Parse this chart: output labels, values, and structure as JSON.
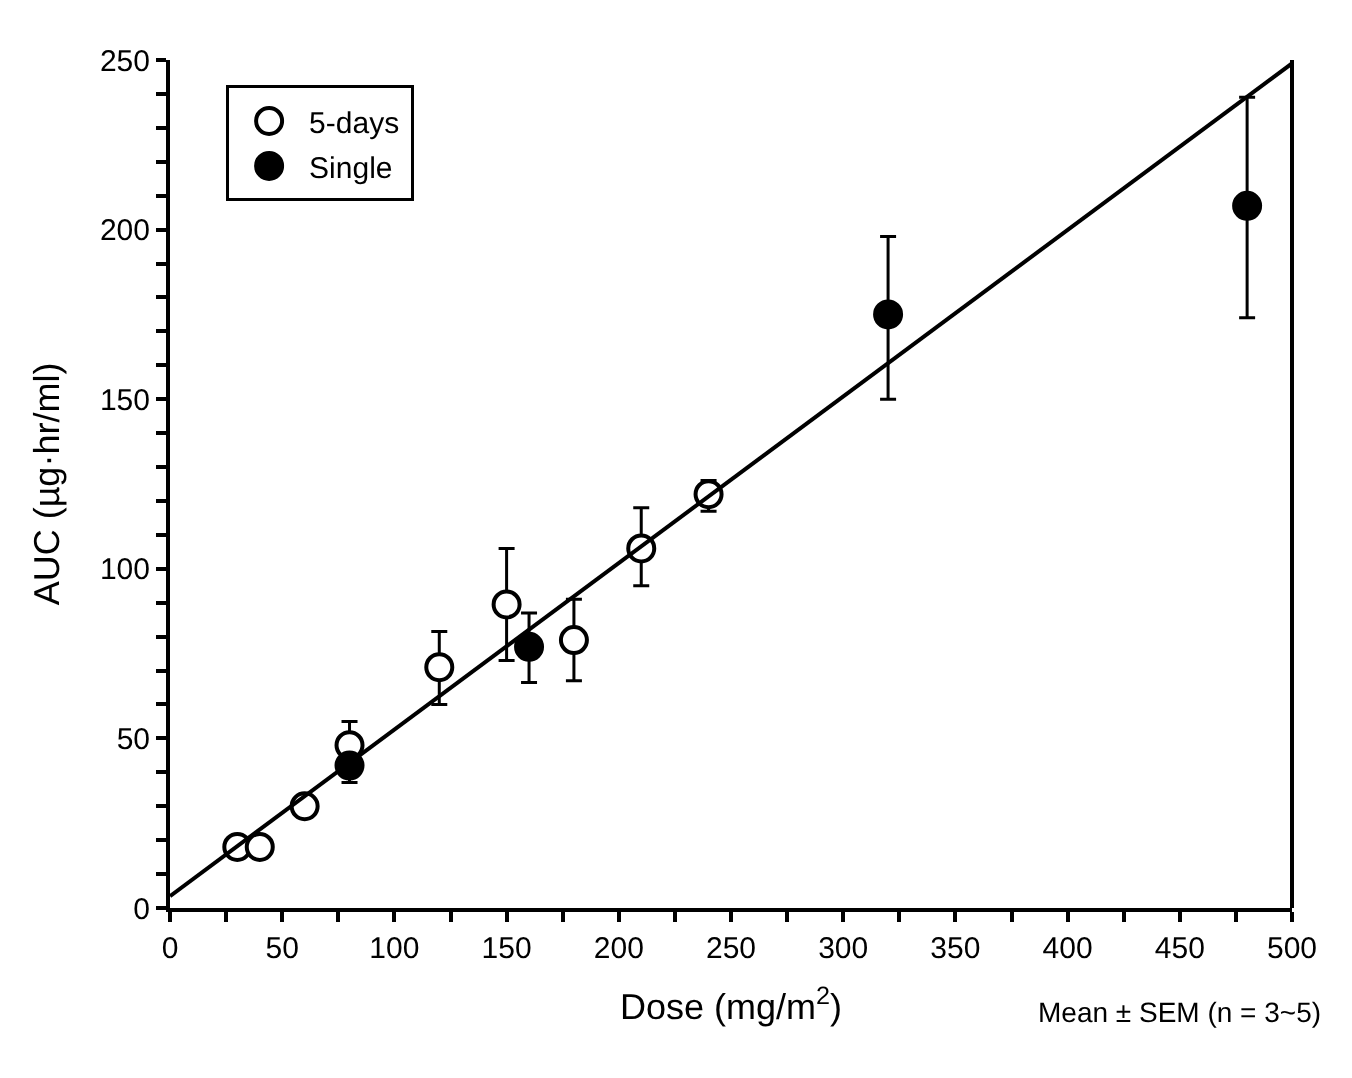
{
  "chart_data": {
    "type": "scatter",
    "xlabel": "Dose (mg/m$^{2}$)",
    "ylabel": "AUC (µg·hr/ml)",
    "annotations": [
      "Mean ± SEM (n = 3~5)"
    ],
    "series": [
      {
        "name": "5-days",
        "color": "#ffffff",
        "x": [
          30,
          40,
          60,
          80,
          120,
          150,
          180,
          210,
          240
        ],
        "values": [
          18,
          18,
          30,
          48,
          71,
          89.5,
          79,
          106,
          122
        ],
        "errors": [
          null,
          null,
          null,
          7,
          [
            60,
            81.5
          ],
          [
            73,
            106
          ],
          [
            67,
            91
          ],
          [
            95,
            118
          ],
          [
            117,
            126
          ]
        ]
      },
      {
        "name": "Single",
        "color": "#000000",
        "x": [
          80,
          160,
          320,
          480
        ],
        "values": [
          42,
          77,
          175,
          207
        ],
        "errors": [
          [
            37,
            45
          ],
          [
            66.5,
            87
          ],
          [
            150,
            198
          ],
          [
            174,
            239
          ]
        ]
      },
      {
        "type": "line",
        "color": "#000000",
        "x": [
          0,
          500
        ],
        "values": [
          3.5,
          249
        ],
        "marker": "none"
      }
    ],
    "xlim": [
      0,
      500
    ],
    "ylim": [
      0,
      250
    ],
    "xticks": [
      0,
      {
        "value": 25,
        "label": null
      },
      50,
      {
        "value": 75,
        "label": null
      },
      100,
      {
        "value": 125,
        "label": null
      },
      150,
      {
        "value": 175,
        "label": null
      },
      200,
      {
        "value": 225,
        "label": null
      },
      250,
      {
        "value": 275,
        "label": null
      },
      300,
      {
        "value": 325,
        "label": null
      },
      350,
      {
        "value": 375,
        "label": null
      },
      400,
      {
        "value": 425,
        "label": null
      },
      450,
      {
        "value": 475,
        "label": null
      },
      500
    ],
    "yticks": [
      0,
      {
        "value": 10,
        "label": null
      },
      {
        "value": 20,
        "label": null
      },
      {
        "value": 30,
        "label": null
      },
      {
        "value": 40,
        "label": null
      },
      50,
      {
        "value": 60,
        "label": null
      },
      {
        "value": 70,
        "label": null
      },
      {
        "value": 80,
        "label": null
      },
      {
        "value": 90,
        "label": null
      },
      100,
      {
        "value": 110,
        "label": null
      },
      {
        "value": 120,
        "label": null
      },
      {
        "value": 130,
        "label": null
      },
      {
        "value": 140,
        "label": null
      },
      150,
      {
        "value": 160,
        "label": null
      },
      {
        "value": 170,
        "label": null
      },
      {
        "value": 180,
        "label": null
      },
      {
        "value": 190,
        "label": null
      },
      200,
      {
        "value": 210,
        "label": null
      },
      {
        "value": 220,
        "label": null
      },
      {
        "value": 230,
        "label": null
      },
      {
        "value": 240,
        "label": null
      },
      250
    ],
    "legend": "top left",
    "marker": "circle",
    "line_style": "solid"
  }
}
